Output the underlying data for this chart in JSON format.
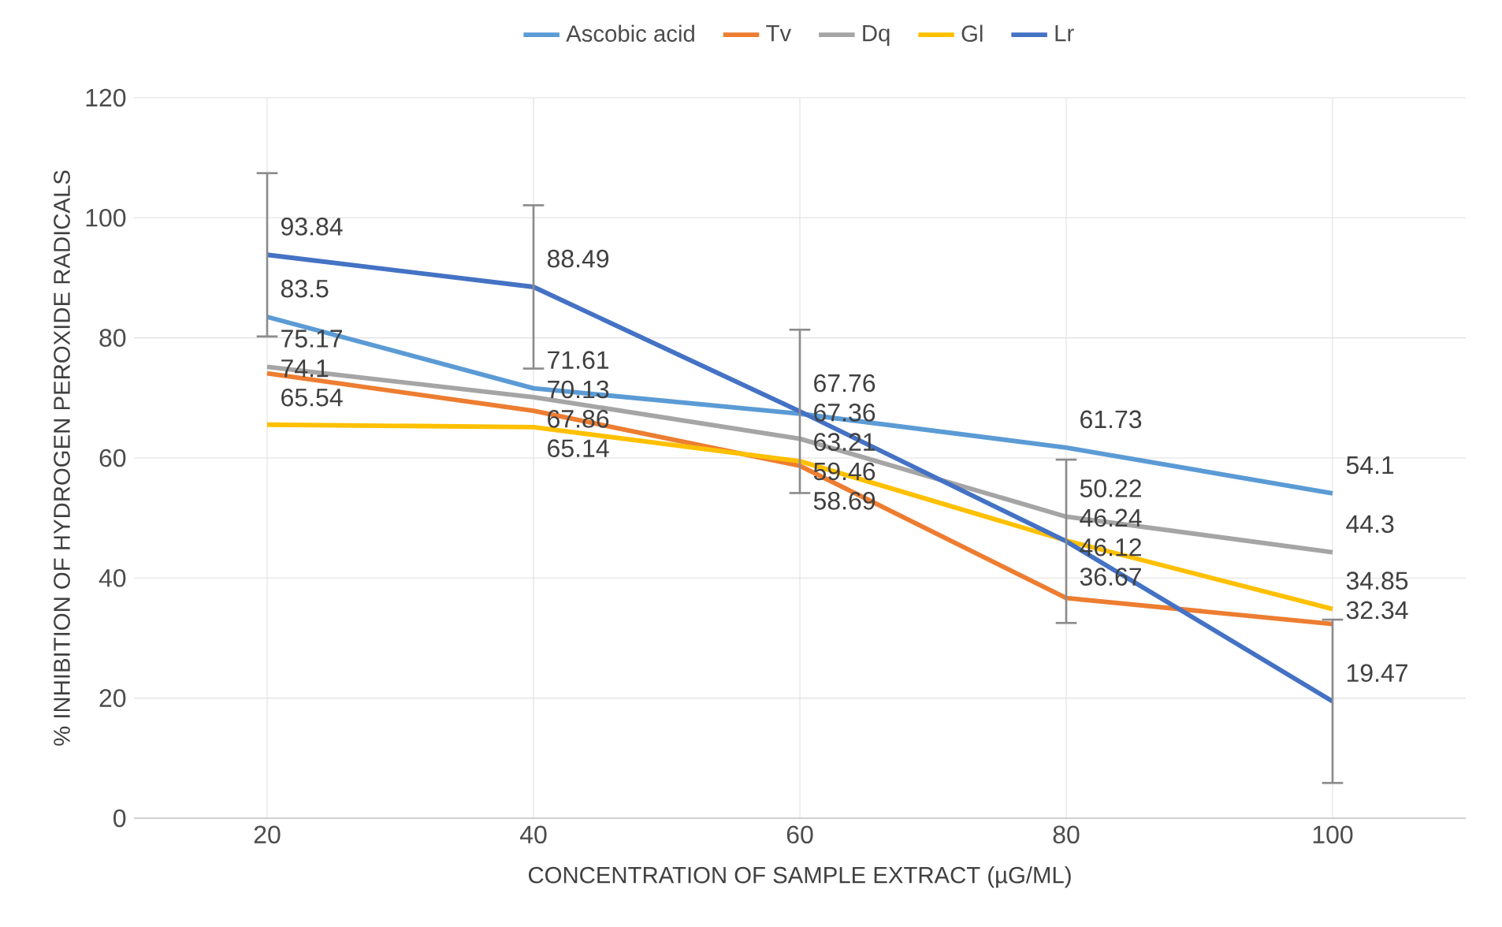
{
  "chart_data": {
    "type": "line",
    "xlabel": "CONCENTRATION OF SAMPLE EXTRACT (µG/ML)",
    "ylabel": "% INHIBITION OF HYDROGEN PEROXIDE  RADICALS",
    "categories": [
      "20",
      "40",
      "60",
      "80",
      "100"
    ],
    "series": [
      {
        "name": "Ascobic acid",
        "color": "#5b9bd5",
        "values": [
          83.5,
          71.61,
          67.36,
          61.73,
          54.1
        ]
      },
      {
        "name": "Tv",
        "color": "#ed7d31",
        "values": [
          74.1,
          67.86,
          58.69,
          36.67,
          32.34
        ]
      },
      {
        "name": "Dq",
        "color": "#a5a5a5",
        "values": [
          75.17,
          70.13,
          63.21,
          50.22,
          44.3
        ]
      },
      {
        "name": "Gl",
        "color": "#ffc000",
        "values": [
          65.54,
          65.14,
          59.46,
          46.24,
          34.85
        ]
      },
      {
        "name": "Lr",
        "color": "#4472c4",
        "values": [
          93.84,
          88.49,
          67.76,
          46.12,
          19.47
        ],
        "errors": [
          13.6,
          13.6,
          13.6,
          13.6,
          13.6
        ]
      }
    ],
    "ylim": [
      0,
      120
    ],
    "yticks": [
      0,
      20,
      40,
      60,
      80,
      100,
      120
    ],
    "grid": true,
    "legend": "top",
    "marker": "none",
    "line_style": "solid",
    "data_labels": true
  }
}
